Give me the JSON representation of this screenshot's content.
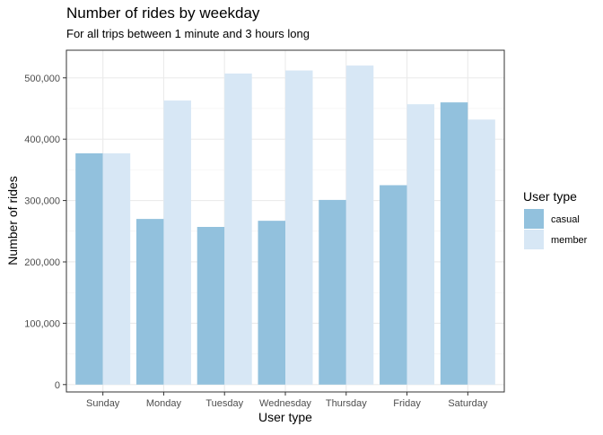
{
  "chart_data": {
    "type": "bar",
    "title": "Number of rides by weekday",
    "subtitle": "For all trips between 1 minute and 3 hours long",
    "xlabel": "User type",
    "ylabel": "Number of rides",
    "categories": [
      "Sunday",
      "Monday",
      "Tuesday",
      "Wednesday",
      "Thursday",
      "Friday",
      "Saturday"
    ],
    "series": [
      {
        "name": "casual",
        "color": "#92c1dd",
        "values": [
          377000,
          270000,
          257000,
          267000,
          301000,
          325000,
          460000
        ]
      },
      {
        "name": "member",
        "color": "#d7e7f5",
        "values": [
          377000,
          463000,
          507000,
          512000,
          520000,
          457000,
          432000
        ]
      }
    ],
    "ylim": [
      -12000,
      545000
    ],
    "yticks": [
      0,
      100000,
      200000,
      300000,
      400000,
      500000
    ],
    "ytick_labels": [
      "0",
      "100,000",
      "200,000",
      "300,000",
      "400,000",
      "500,000"
    ],
    "grid": true,
    "legend": {
      "title": "User type",
      "position": "right"
    }
  }
}
